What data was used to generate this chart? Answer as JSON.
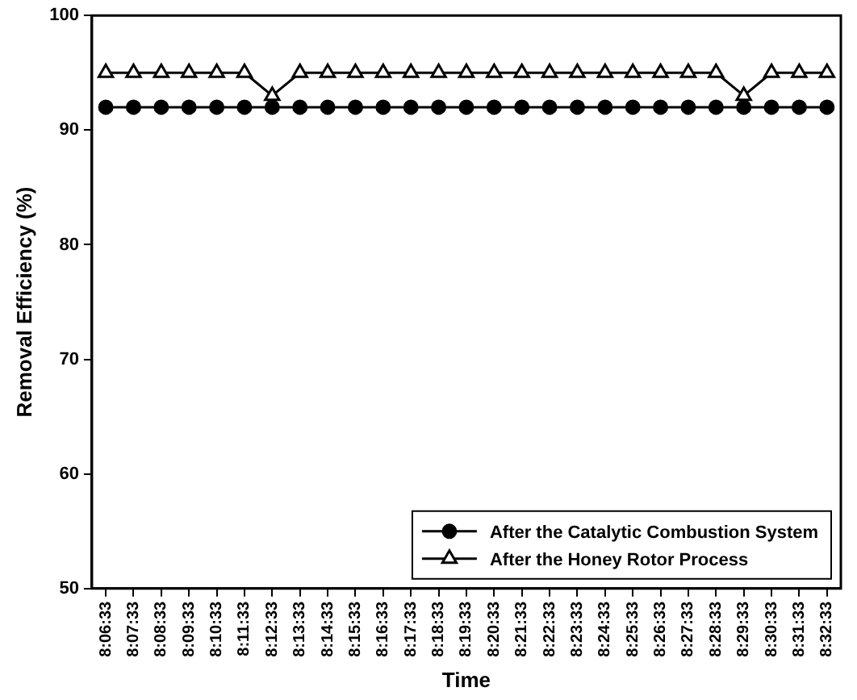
{
  "chart_data": {
    "type": "line",
    "xlabel": "Time",
    "ylabel": "Removal Efficiency (%)",
    "categories": [
      "8:06:33",
      "8:07:33",
      "8:08:33",
      "8:09:33",
      "8:10:33",
      "8:11:33",
      "8:12:33",
      "8:13:33",
      "8:14:33",
      "8:15:33",
      "8:16:33",
      "8:17:33",
      "8:18:33",
      "8:19:33",
      "8:20:33",
      "8:21:33",
      "8:22:33",
      "8:23:33",
      "8:24:33",
      "8:25:33",
      "8:26:33",
      "8:27:33",
      "8:28:33",
      "8:29:33",
      "8:30:33",
      "8:31:33",
      "8:32:33"
    ],
    "series": [
      {
        "name": "After the Catalytic Combustion System",
        "color": "#000000",
        "marker": "circle",
        "values": [
          92,
          92,
          92,
          92,
          92,
          92,
          92,
          92,
          92,
          92,
          92,
          92,
          92,
          92,
          92,
          92,
          92,
          92,
          92,
          92,
          92,
          92,
          92,
          92,
          92,
          92,
          92
        ]
      },
      {
        "name": "After the Honey Rotor Process",
        "color": "#000000",
        "marker": "triangle",
        "values": [
          95,
          95,
          95,
          95,
          95,
          95,
          93,
          95,
          95,
          95,
          95,
          95,
          95,
          95,
          95,
          95,
          95,
          95,
          95,
          95,
          95,
          95,
          95,
          93,
          95,
          95,
          95
        ]
      }
    ],
    "ylim": [
      50,
      100
    ],
    "yticks": [
      50,
      60,
      70,
      80,
      90,
      100
    ],
    "grid": false,
    "legend": "bottom right",
    "line_style": "solid"
  }
}
